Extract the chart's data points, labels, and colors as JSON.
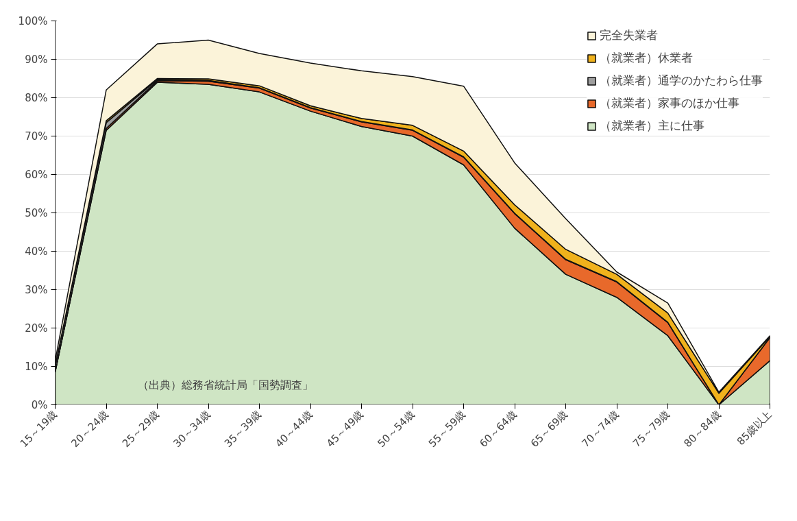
{
  "chart_data": {
    "type": "area",
    "stacked": true,
    "categories": [
      "15～19歳",
      "20～24歳",
      "25～29歳",
      "30～34歳",
      "35～39歳",
      "40～44歳",
      "45～49歳",
      "50～54歳",
      "55～59歳",
      "60～64歳",
      "65～69歳",
      "70～74歳",
      "75～79歳",
      "80～84歳",
      "85歳以上"
    ],
    "series": [
      {
        "name": "（就業者）主に仕事",
        "color": "#cfe5c4",
        "values": [
          8.5,
          71.5,
          84,
          83.5,
          81.5,
          76.5,
          72.5,
          70,
          62.5,
          46,
          34,
          28,
          18,
          0,
          11.5
        ]
      },
      {
        "name": "（就業者）家事のほか仕事",
        "color": "#e8692b",
        "values": [
          0.1,
          0.5,
          0.4,
          0.8,
          1.0,
          0.8,
          1.2,
          1.5,
          2,
          3.8,
          3.8,
          4,
          3.4,
          0,
          6
        ]
      },
      {
        "name": "（就業者）通学のかたわら仕事",
        "color": "#9e9e9e",
        "values": [
          1.5,
          1.5,
          0.3,
          0.2,
          0.1,
          0.1,
          0.1,
          0.1,
          0.1,
          0.1,
          0.1,
          0.1,
          0.1,
          0,
          0
        ]
      },
      {
        "name": "（就業者）休業者",
        "color": "#f0b21c",
        "values": [
          0.1,
          0.5,
          0.3,
          0.4,
          0.5,
          0.5,
          0.8,
          1.2,
          1.5,
          2.2,
          2.6,
          1.9,
          2.4,
          3,
          0.3
        ]
      },
      {
        "name": "完全失業者",
        "color": "#fbf3d9",
        "values": [
          1.3,
          8,
          9,
          10.1,
          8.4,
          11.1,
          12.4,
          12.7,
          16.9,
          10.9,
          8,
          0.6,
          2.6,
          0.3,
          0.2
        ]
      }
    ],
    "ylim": [
      0,
      100
    ],
    "yticks": [
      {
        "value": 0,
        "label": "0%"
      },
      {
        "value": 10,
        "label": "10%"
      },
      {
        "value": 20,
        "label": "20%"
      },
      {
        "value": 30,
        "label": "30%"
      },
      {
        "value": 40,
        "label": "40%"
      },
      {
        "value": 50,
        "label": "50%"
      },
      {
        "value": 60,
        "label": "60%"
      },
      {
        "value": 70,
        "label": "70%"
      },
      {
        "value": 80,
        "label": "80%"
      },
      {
        "value": 90,
        "label": "90%"
      },
      {
        "value": 100,
        "label": "100%"
      }
    ],
    "grid": "y",
    "legend": "top right",
    "annotations": [
      "（出典）総務省統計局「国勢調査」"
    ]
  }
}
